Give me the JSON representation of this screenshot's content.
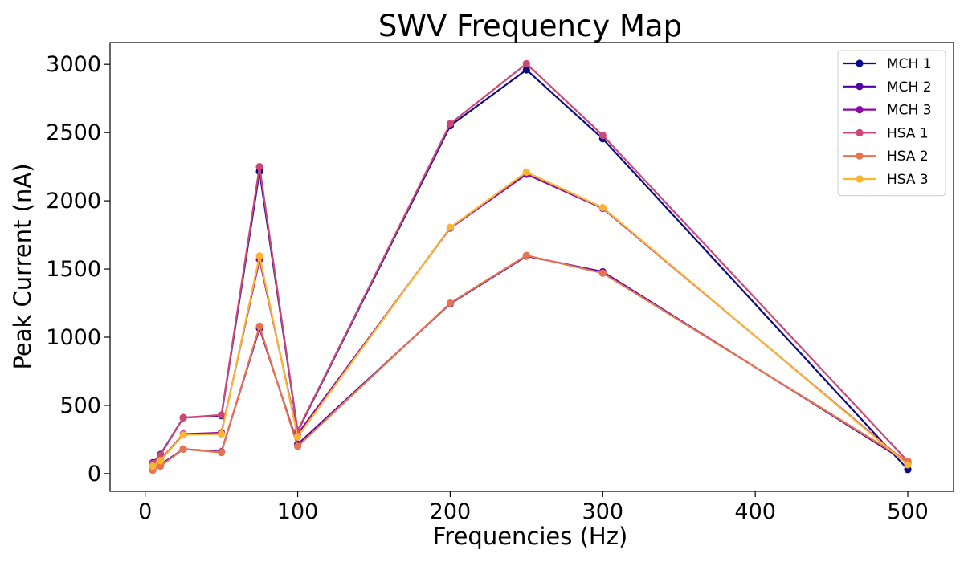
{
  "chart_data": {
    "type": "line",
    "title": "SWV Frequency Map",
    "xlabel": "Frequencies (Hz)",
    "ylabel": "Peak Current (nA)",
    "xlim": [
      -23,
      530
    ],
    "ylim": [
      -130,
      3160
    ],
    "xticks": [
      0,
      100,
      200,
      300,
      400,
      500
    ],
    "yticks": [
      0,
      500,
      1000,
      1500,
      2000,
      2500,
      3000
    ],
    "grid": false,
    "legend_position": "top-right",
    "x": [
      5,
      10,
      25,
      50,
      75,
      100,
      200,
      250,
      300,
      500
    ],
    "series": [
      {
        "name": "MCH 1",
        "color": "#0d0887",
        "values": [
          80,
          140,
          410,
          425,
          2215,
          310,
          2550,
          2960,
          2455,
          30
        ]
      },
      {
        "name": "MCH 2",
        "color": "#5302a3",
        "values": [
          30,
          65,
          180,
          160,
          1065,
          215,
          1245,
          1595,
          1480,
          80
        ]
      },
      {
        "name": "MCH 3",
        "color": "#8b0aa5",
        "values": [
          60,
          100,
          290,
          300,
          1570,
          290,
          1800,
          2195,
          1945,
          70
        ]
      },
      {
        "name": "HSA 1",
        "color": "#cc4778",
        "values": [
          75,
          135,
          410,
          430,
          2250,
          315,
          2565,
          3005,
          2480,
          90
        ]
      },
      {
        "name": "HSA 2",
        "color": "#e8744e",
        "values": [
          25,
          55,
          180,
          155,
          1080,
          200,
          1250,
          1600,
          1470,
          90
        ]
      },
      {
        "name": "HSA 3",
        "color": "#fdb42f",
        "values": [
          55,
          95,
          285,
          290,
          1595,
          270,
          1805,
          2210,
          1950,
          65
        ]
      }
    ]
  }
}
